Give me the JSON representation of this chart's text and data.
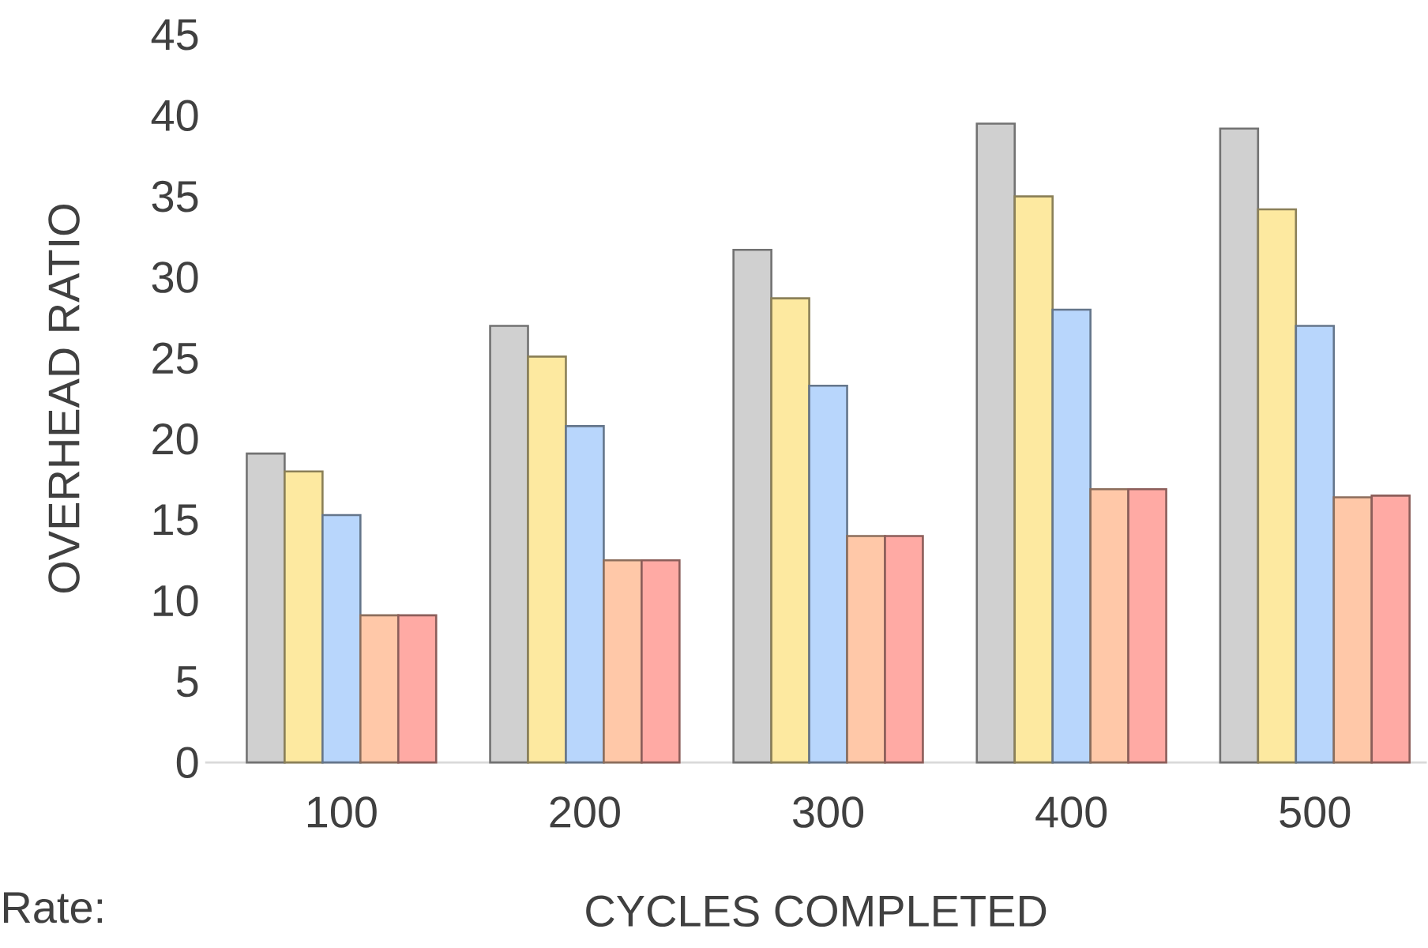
{
  "chart_data": {
    "type": "bar",
    "xlabel": "CYCLES COMPLETED",
    "ylabel": "OVERHEAD RATIO",
    "annotations": [
      "Rate:"
    ],
    "categories": [
      "100",
      "200",
      "300",
      "400",
      "500"
    ],
    "ylim": [
      0,
      45
    ],
    "yticks": [
      0,
      5,
      10,
      15,
      20,
      25,
      30,
      35,
      40,
      45
    ],
    "series": [
      {
        "color": "#d0d0d0",
        "values": [
          19.1,
          27.0,
          31.7,
          39.5,
          39.2
        ]
      },
      {
        "color": "#fde9a0",
        "values": [
          18.0,
          25.1,
          28.7,
          35.0,
          34.2
        ]
      },
      {
        "color": "#b8d6fc",
        "values": [
          15.3,
          20.8,
          23.3,
          28.0,
          27.0
        ]
      },
      {
        "color": "#ffc8a8",
        "values": [
          9.1,
          12.5,
          14.0,
          16.9,
          16.4
        ]
      },
      {
        "color": "#ffaaa4",
        "values": [
          9.1,
          12.5,
          14.0,
          16.9,
          16.5
        ]
      }
    ]
  }
}
